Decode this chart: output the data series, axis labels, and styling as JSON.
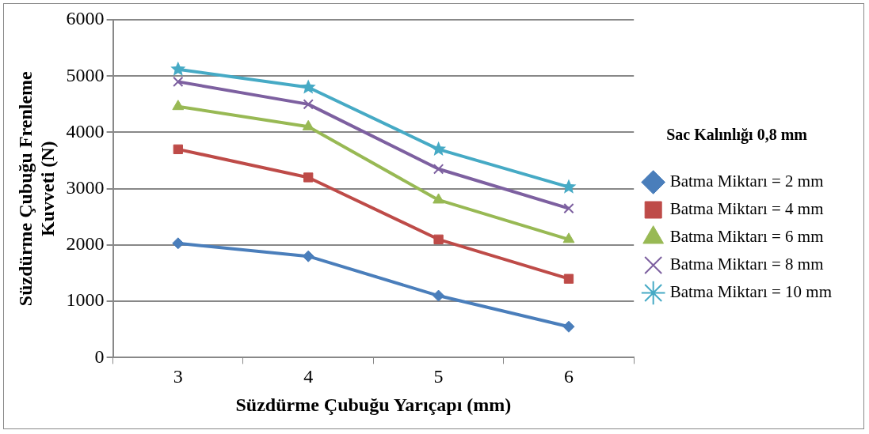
{
  "chart_data": {
    "type": "line",
    "xlabel": "Süzdürme Çubuğu Yarıçapı (mm)",
    "ylabel": "Süzdürme Çubuğu Frenleme Kuvveti (N)",
    "legend_title": "Sac Kalınlığı 0,8 mm",
    "categories": [
      "3",
      "4",
      "5",
      "6"
    ],
    "ylim": [
      0,
      6000
    ],
    "yticks": [
      0,
      1000,
      2000,
      3000,
      4000,
      5000,
      6000
    ],
    "grid": "y",
    "legend": "right",
    "line_style": "solid",
    "series": [
      {
        "name": "Batma Miktarı = 2 mm",
        "color": "#4a7ebb",
        "marker": "diamond",
        "values": [
          2030,
          1800,
          1100,
          550
        ]
      },
      {
        "name": "Batma Miktarı = 4 mm",
        "color": "#be4b48",
        "marker": "square",
        "values": [
          3700,
          3200,
          2100,
          1400
        ]
      },
      {
        "name": "Batma Miktarı = 6 mm",
        "color": "#98b954",
        "marker": "triangle",
        "values": [
          4460,
          4100,
          2800,
          2100
        ]
      },
      {
        "name": "Batma Miktarı = 8 mm",
        "color": "#7d60a0",
        "marker": "cross",
        "values": [
          4900,
          4500,
          3350,
          2650
        ]
      },
      {
        "name": "Batma Miktarı = 10 mm",
        "color": "#46aac5",
        "marker": "star",
        "values": [
          5120,
          4800,
          3700,
          3030
        ]
      }
    ]
  }
}
